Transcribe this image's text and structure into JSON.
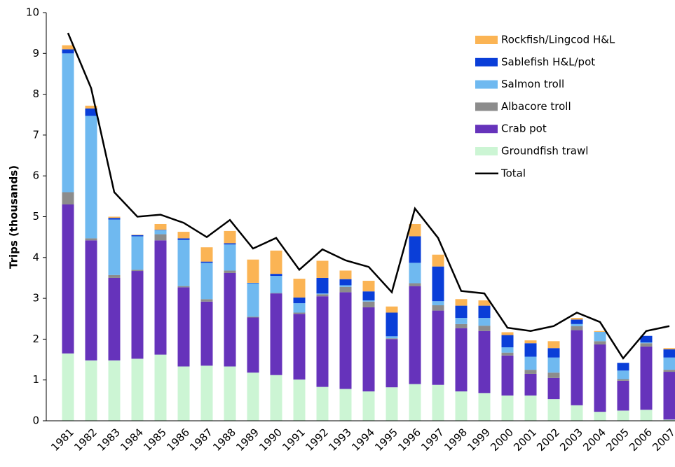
{
  "chart_data": {
    "type": "bar",
    "stacked": true,
    "y_label": "Trips (thousands)",
    "categories": [
      "1981",
      "1982",
      "1983",
      "1984",
      "1985",
      "1986",
      "1987",
      "1988",
      "1989",
      "1990",
      "1991",
      "1992",
      "1993",
      "1994",
      "1995",
      "1996",
      "1997",
      "1998",
      "1999",
      "2000",
      "2001",
      "2002",
      "2003",
      "2004",
      "2005",
      "2006",
      "2007"
    ],
    "series": [
      {
        "name": "Groundfish trawl",
        "color": "#ccf5d4",
        "values": [
          1.65,
          1.48,
          1.48,
          1.52,
          1.62,
          1.33,
          1.35,
          1.33,
          1.18,
          1.12,
          1.01,
          0.83,
          0.78,
          0.72,
          0.82,
          0.9,
          0.88,
          0.72,
          0.68,
          0.62,
          0.62,
          0.53,
          0.38,
          0.22,
          0.25,
          0.27,
          0.03
        ]
      },
      {
        "name": "Crab pot",
        "color": "#6633bb",
        "values": [
          3.65,
          2.94,
          2.02,
          2.15,
          2.8,
          1.94,
          1.57,
          2.29,
          1.35,
          2.0,
          1.61,
          2.22,
          2.37,
          2.06,
          1.18,
          2.4,
          1.82,
          1.55,
          1.52,
          0.98,
          0.53,
          0.52,
          1.84,
          1.65,
          0.73,
          1.55,
          1.17
        ]
      },
      {
        "name": "Albacore troll",
        "color": "#8c8c8c",
        "values": [
          0.3,
          0.05,
          0.07,
          0.03,
          0.15,
          0.03,
          0.06,
          0.06,
          0.02,
          0.01,
          0.03,
          0.05,
          0.13,
          0.14,
          0.02,
          0.07,
          0.13,
          0.1,
          0.13,
          0.07,
          0.1,
          0.13,
          0.1,
          0.08,
          0.04,
          0.08,
          0.05
        ]
      },
      {
        "name": "Salmon troll",
        "color": "#6fb9f0",
        "values": [
          3.4,
          3.0,
          1.36,
          0.82,
          0.1,
          1.13,
          0.89,
          0.64,
          0.82,
          0.42,
          0.23,
          0.02,
          0.04,
          0.03,
          0.05,
          0.5,
          0.1,
          0.15,
          0.19,
          0.13,
          0.32,
          0.37,
          0.05,
          0.23,
          0.21,
          0.02,
          0.3
        ]
      },
      {
        "name": "Sablefish H&L/pot",
        "color": "#0a3ed8",
        "values": [
          0.1,
          0.18,
          0.04,
          0.03,
          0.01,
          0.04,
          0.03,
          0.03,
          0.01,
          0.05,
          0.14,
          0.38,
          0.15,
          0.22,
          0.58,
          0.65,
          0.85,
          0.3,
          0.3,
          0.3,
          0.33,
          0.23,
          0.11,
          0,
          0.19,
          0.16,
          0.2
        ]
      },
      {
        "name": "Rockfish/Lingcod H&L",
        "color": "#fbb454",
        "values": [
          0.1,
          0.07,
          0.03,
          0.01,
          0.14,
          0.16,
          0.35,
          0.3,
          0.57,
          0.57,
          0.46,
          0.42,
          0.21,
          0.26,
          0.15,
          0.3,
          0.29,
          0.16,
          0.13,
          0.07,
          0.07,
          0.17,
          0.04,
          0.02,
          0,
          0,
          0.03
        ]
      }
    ],
    "line_series": {
      "name": "Total",
      "color": "#000000",
      "values": [
        9.5,
        8.15,
        5.6,
        5.0,
        5.05,
        4.85,
        4.5,
        4.92,
        4.22,
        4.48,
        3.7,
        4.2,
        3.93,
        3.77,
        3.15,
        5.2,
        4.48,
        3.18,
        3.12,
        2.28,
        2.2,
        2.32,
        2.65,
        2.42,
        1.53,
        2.2,
        2.32
      ]
    },
    "ylim": [
      0,
      10
    ],
    "yticks": [
      0,
      1,
      2,
      3,
      4,
      5,
      6,
      7,
      8,
      9,
      10
    ],
    "grid": false,
    "legend": "top-right"
  }
}
